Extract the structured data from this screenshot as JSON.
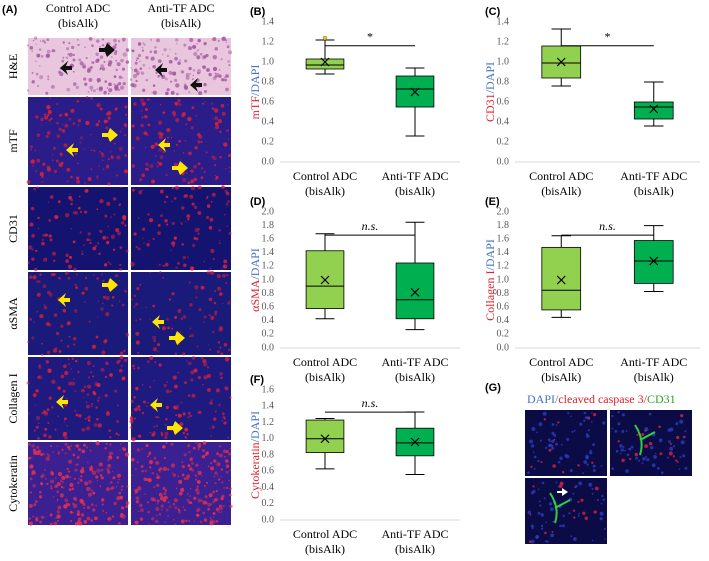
{
  "panel_a": {
    "label": "(A)",
    "columns": [
      [
        "Control ADC",
        "(bisAlk)"
      ],
      [
        "Anti-TF ADC",
        "(bisAlk)"
      ]
    ],
    "rows": [
      "H&E",
      "mTF",
      "CD31",
      "αSMA",
      "Collagen I",
      "Cytokeratin"
    ],
    "row_colors": [
      "#000000",
      "#e0202a",
      "#e0202a",
      "#e0202a",
      "#e0202a",
      "#e0202a"
    ]
  },
  "chart_data": [
    {
      "type": "box",
      "label": "(B)",
      "ylabel_parts": [
        "mTF",
        "/DAPI"
      ],
      "ylabel_colors": [
        "#e0202a",
        "#4472c4"
      ],
      "categories": [
        [
          "Control ADC",
          "(bisAlk)"
        ],
        [
          "Anti-TF ADC",
          "(bisAlk)"
        ]
      ],
      "boxes": [
        {
          "color": "#92d050",
          "min": 0.88,
          "q1": 0.93,
          "median": 0.97,
          "q3": 1.03,
          "max": 1.22,
          "mean": 1.0,
          "outliers": [
            1.24
          ]
        },
        {
          "color": "#00b050",
          "min": 0.26,
          "q1": 0.55,
          "median": 0.73,
          "q3": 0.86,
          "max": 0.94,
          "mean": 0.7
        }
      ],
      "ylim": [
        0,
        1.4
      ],
      "yticks": [
        {
          "value": 0,
          "label": "0.0"
        },
        {
          "value": 0.2,
          "label": "0.2"
        },
        {
          "value": 0.4,
          "label": "0.4"
        },
        {
          "value": 0.6,
          "label": "0.6"
        },
        {
          "value": 0.8,
          "label": "0.8"
        },
        {
          "value": 1,
          "label": "1.0"
        },
        {
          "value": 1.2,
          "label": "1.2"
        },
        {
          "value": 1.4,
          "label": "1.4"
        }
      ],
      "significance": "*",
      "significance_style": "normal"
    },
    {
      "type": "box",
      "label": "(C)",
      "ylabel_parts": [
        "CD31",
        "/DAPI"
      ],
      "ylabel_colors": [
        "#e0202a",
        "#4472c4"
      ],
      "categories": [
        [
          "Control ADC",
          "(bisAlk)"
        ],
        [
          "Anti-TF ADC",
          "(bisAlk)"
        ]
      ],
      "boxes": [
        {
          "color": "#92d050",
          "min": 0.76,
          "q1": 0.84,
          "median": 0.99,
          "q3": 1.16,
          "max": 1.33,
          "mean": 1.0
        },
        {
          "color": "#00b050",
          "min": 0.36,
          "q1": 0.43,
          "median": 0.55,
          "q3": 0.6,
          "max": 0.8,
          "mean": 0.53
        }
      ],
      "ylim": [
        0,
        1.4
      ],
      "yticks": [
        {
          "value": 0,
          "label": "0.0"
        },
        {
          "value": 0.2,
          "label": "0.2"
        },
        {
          "value": 0.4,
          "label": "0.4"
        },
        {
          "value": 0.6,
          "label": "0.6"
        },
        {
          "value": 0.8,
          "label": "0.8"
        },
        {
          "value": 1,
          "label": "1.0"
        },
        {
          "value": 1.2,
          "label": "1.2"
        },
        {
          "value": 1.4,
          "label": "1.4"
        }
      ],
      "significance": "*",
      "significance_style": "normal"
    },
    {
      "type": "box",
      "label": "(D)",
      "ylabel_parts": [
        "αSMA",
        "/DAPI"
      ],
      "ylabel_colors": [
        "#e0202a",
        "#4472c4"
      ],
      "categories": [
        [
          "Control ADC",
          "(bisAlk)"
        ],
        [
          "Anti-TF ADC",
          "(bisAlk)"
        ]
      ],
      "boxes": [
        {
          "color": "#92d050",
          "min": 0.43,
          "q1": 0.58,
          "median": 0.91,
          "q3": 1.43,
          "max": 1.68,
          "mean": 1.0
        },
        {
          "color": "#00b050",
          "min": 0.27,
          "q1": 0.43,
          "median": 0.71,
          "q3": 1.25,
          "max": 1.85,
          "mean": 0.82
        }
      ],
      "ylim": [
        0,
        2
      ],
      "yticks": [
        {
          "value": 0,
          "label": "0.0"
        },
        {
          "value": 0.2,
          "label": "0.2"
        },
        {
          "value": 0.4,
          "label": "0.4"
        },
        {
          "value": 0.6,
          "label": "0.6"
        },
        {
          "value": 0.8,
          "label": "0.8"
        },
        {
          "value": 1,
          "label": "1.0"
        },
        {
          "value": 1.2,
          "label": "1.2"
        },
        {
          "value": 1.4,
          "label": "1.4"
        },
        {
          "value": 1.6,
          "label": "1.6"
        },
        {
          "value": 1.8,
          "label": "1.8"
        },
        {
          "value": 2,
          "label": "2.0"
        }
      ],
      "significance": "n.s.",
      "significance_style": "italic"
    },
    {
      "type": "box",
      "label": "(E)",
      "ylabel_parts": [
        "Collagen I",
        "/DAPI"
      ],
      "ylabel_colors": [
        "#e0202a",
        "#4472c4"
      ],
      "categories": [
        [
          "Control ADC",
          "(bisAlk)"
        ],
        [
          "Anti-TF ADC",
          "(bisAlk)"
        ]
      ],
      "boxes": [
        {
          "color": "#92d050",
          "min": 0.45,
          "q1": 0.56,
          "median": 0.85,
          "q3": 1.48,
          "max": 1.65,
          "mean": 1.0
        },
        {
          "color": "#00b050",
          "min": 0.83,
          "q1": 0.95,
          "median": 1.28,
          "q3": 1.58,
          "max": 1.8,
          "mean": 1.28
        }
      ],
      "ylim": [
        0,
        2
      ],
      "yticks": [
        {
          "value": 0,
          "label": "0.0"
        },
        {
          "value": 0.2,
          "label": "0.2"
        },
        {
          "value": 0.4,
          "label": "0.4"
        },
        {
          "value": 0.6,
          "label": "0.6"
        },
        {
          "value": 0.8,
          "label": "0.8"
        },
        {
          "value": 1,
          "label": "1.0"
        },
        {
          "value": 1.2,
          "label": "1.2"
        },
        {
          "value": 1.4,
          "label": "1.4"
        },
        {
          "value": 1.6,
          "label": "1.6"
        },
        {
          "value": 1.8,
          "label": "1.8"
        },
        {
          "value": 2,
          "label": "2.0"
        }
      ],
      "significance": "n.s.",
      "significance_style": "italic"
    },
    {
      "type": "box",
      "label": "(F)",
      "ylabel_parts": [
        "Cytokeratin",
        "/DAPI"
      ],
      "ylabel_colors": [
        "#e0202a",
        "#4472c4"
      ],
      "categories": [
        [
          "Control ADC",
          "(bisAlk)"
        ],
        [
          "Anti-TF ADC",
          "(bisAlk)"
        ]
      ],
      "boxes": [
        {
          "color": "#92d050",
          "min": 0.63,
          "q1": 0.83,
          "median": 1.0,
          "q3": 1.23,
          "max": 1.25,
          "mean": 1.0
        },
        {
          "color": "#00b050",
          "min": 0.56,
          "q1": 0.79,
          "median": 0.95,
          "q3": 1.13,
          "max": 1.33,
          "mean": 0.96
        }
      ],
      "ylim": [
        0,
        1.6
      ],
      "yticks": [
        {
          "value": 0,
          "label": "0.0"
        },
        {
          "value": 0.2,
          "label": "0.2"
        },
        {
          "value": 0.4,
          "label": "0.4"
        },
        {
          "value": 0.6,
          "label": "0.6"
        },
        {
          "value": 0.8,
          "label": "0.8"
        },
        {
          "value": 1,
          "label": "1.0"
        },
        {
          "value": 1.2,
          "label": "1.2"
        },
        {
          "value": 1.4,
          "label": "1.4"
        },
        {
          "value": 1.6,
          "label": "1.6"
        }
      ],
      "significance": "n.s.",
      "significance_style": "italic"
    }
  ],
  "panel_g": {
    "label": "(G)",
    "title_parts": [
      "DAPI/",
      "cleaved caspase 3/",
      "CD31"
    ],
    "title_colors": [
      "#4472c4",
      "#e0202a",
      "#2ca02c"
    ]
  }
}
